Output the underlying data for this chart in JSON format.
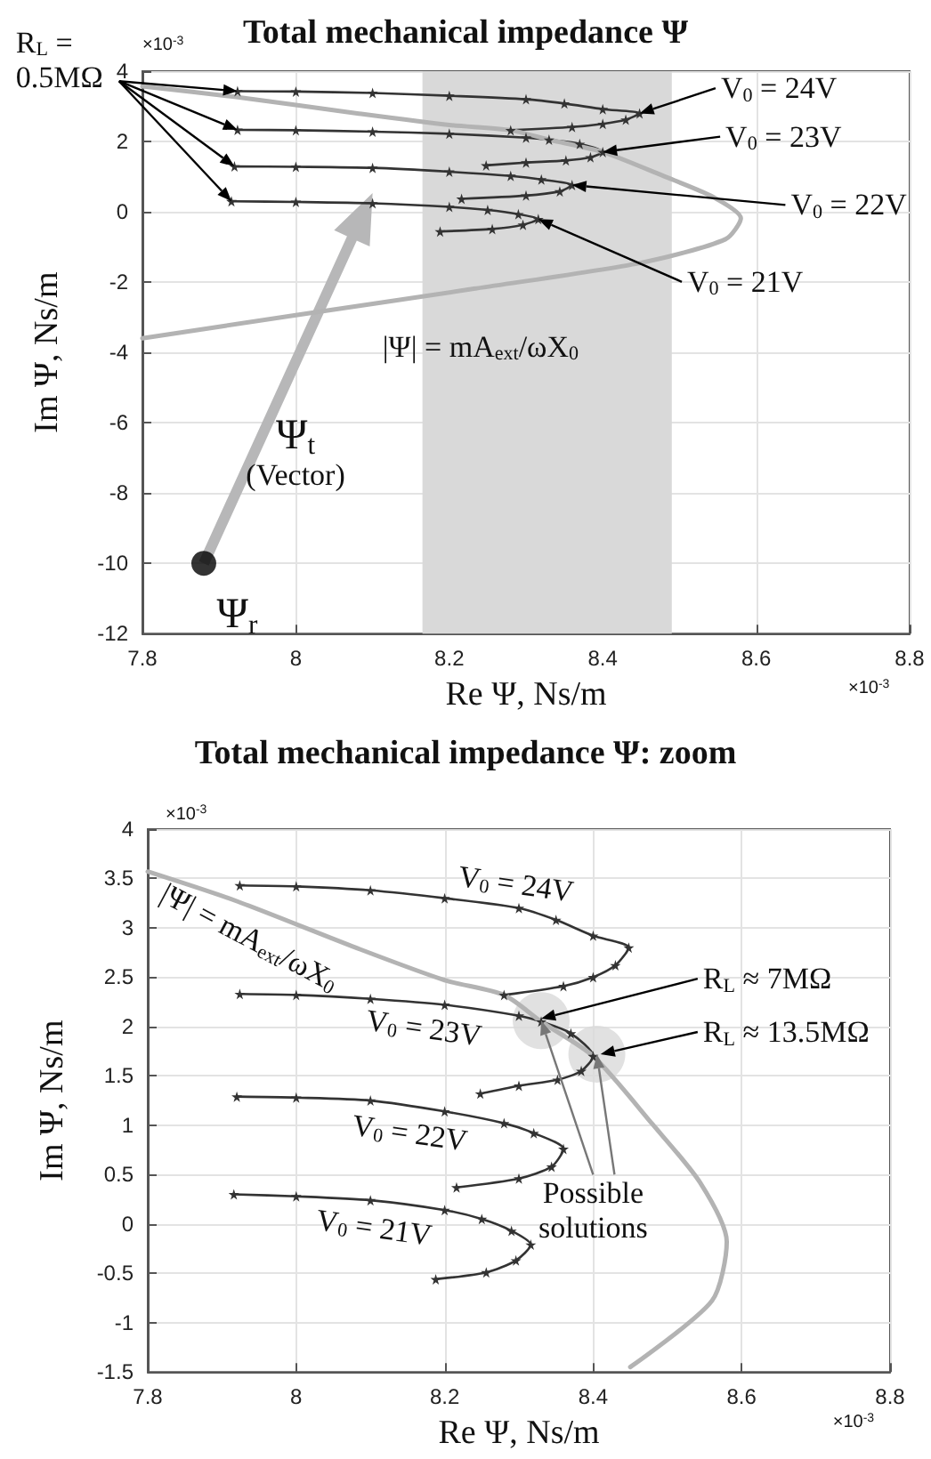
{
  "chart_data": [
    {
      "type": "line",
      "title": "Total mechanical impedance Ψ",
      "xlabel": "Re Ψ, Ns/m",
      "ylabel": "Im Ψ, Ns/m",
      "xlim": [
        7.8,
        8.8
      ],
      "xticks": [
        7.8,
        8,
        8.2,
        8.4,
        8.6,
        8.8
      ],
      "ylim": [
        -12,
        4
      ],
      "yticks": [
        -12,
        -10,
        -8,
        -6,
        -4,
        -2,
        0,
        2,
        4
      ],
      "grid": true,
      "marker": "star",
      "line_style": "solid",
      "bands": [
        {
          "axis": "x",
          "from": 8.165,
          "to": 8.49,
          "color": "#d9d9d9"
        }
      ],
      "series": [
        {
          "color": "#333333",
          "x": [
            7.924,
            8.0,
            8.1,
            8.2,
            8.3,
            8.35,
            8.4,
            8.448,
            8.43,
            8.4,
            8.36,
            8.28
          ],
          "values": [
            3.43,
            3.42,
            3.38,
            3.3,
            3.2,
            3.08,
            2.92,
            2.8,
            2.62,
            2.5,
            2.41,
            2.32
          ]
        },
        {
          "color": "#333333",
          "x": [
            7.924,
            8.0,
            8.1,
            8.2,
            8.3,
            8.33,
            8.37,
            8.4,
            8.384,
            8.352,
            8.3,
            8.248
          ],
          "values": [
            2.33,
            2.32,
            2.28,
            2.22,
            2.11,
            2.05,
            1.93,
            1.7,
            1.55,
            1.46,
            1.4,
            1.32
          ]
        },
        {
          "color": "#333333",
          "x": [
            7.92,
            8.0,
            8.1,
            8.2,
            8.28,
            8.32,
            8.36,
            8.344,
            8.3,
            8.216
          ],
          "values": [
            1.29,
            1.28,
            1.25,
            1.14,
            1.02,
            0.92,
            0.76,
            0.58,
            0.46,
            0.37
          ]
        },
        {
          "color": "#333333",
          "x": [
            7.916,
            8.0,
            8.1,
            8.2,
            8.25,
            8.29,
            8.316,
            8.296,
            8.256,
            8.188
          ],
          "values": [
            0.3,
            0.28,
            0.24,
            0.14,
            0.05,
            -0.07,
            -0.21,
            -0.37,
            -0.49,
            -0.56
          ]
        },
        {
          "color": "#b3b3b3",
          "marker": "none",
          "x": [
            7.8,
            7.92,
            8.08,
            8.2,
            8.28,
            8.33,
            8.4,
            8.48,
            8.544,
            8.58,
            8.56,
            8.45,
            8.232,
            8.0,
            7.8
          ],
          "values": [
            3.57,
            3.27,
            2.8,
            2.47,
            2.32,
            2.05,
            1.7,
            1.01,
            0.42,
            -0.18,
            -0.78,
            -1.45,
            -2.19,
            -2.94,
            -3.6
          ]
        },
        {
          "type": "scatter",
          "color": "#000000",
          "marker": "circle",
          "x": [
            7.88
          ],
          "values": [
            -10
          ]
        }
      ],
      "annotations": [
        {
          "text": "R$_{L}$ =\n0.5MΩ",
          "x": 7.924,
          "y": 3.43
        },
        {
          "text": "V$_{0}$ = 24V",
          "x": 8.448,
          "y": 2.8
        },
        {
          "text": "V$_{0}$ = 23V",
          "x": 8.4,
          "y": 1.7
        },
        {
          "text": "V$_{0}$ = 22V",
          "x": 8.36,
          "y": 0.76
        },
        {
          "text": "V$_{0}$ = 21V",
          "x": 8.316,
          "y": -0.21
        },
        "|Ψ| = mA$_{ext}$/ωX$_{0}$",
        "Ψ$_{t}$",
        "(Vector)",
        "Ψ$_{r}$",
        "×10$^{-3}$",
        "×10$^{-3}$"
      ]
    },
    {
      "type": "line",
      "title": "Total mechanical impedance Ψ: zoom",
      "xlabel": "Re Ψ, Ns/m",
      "ylabel": "Im Ψ, Ns/m",
      "xlim": [
        7.8,
        8.8
      ],
      "xticks": [
        7.8,
        8,
        8.2,
        8.4,
        8.6,
        8.8
      ],
      "ylim": [
        -1.5,
        4
      ],
      "yticks": [
        -1.5,
        -1,
        -0.5,
        0,
        0.5,
        1,
        1.5,
        2,
        2.5,
        3,
        3.5,
        4
      ],
      "grid": true,
      "marker": "star",
      "line_style": "solid",
      "series": [
        {
          "color": "#333333",
          "x": [
            7.924,
            8.0,
            8.1,
            8.2,
            8.3,
            8.35,
            8.4,
            8.448,
            8.43,
            8.4,
            8.36,
            8.28
          ],
          "values": [
            3.43,
            3.42,
            3.38,
            3.3,
            3.2,
            3.08,
            2.92,
            2.8,
            2.62,
            2.5,
            2.41,
            2.32
          ]
        },
        {
          "color": "#333333",
          "x": [
            7.924,
            8.0,
            8.1,
            8.2,
            8.3,
            8.33,
            8.37,
            8.4,
            8.384,
            8.352,
            8.3,
            8.248
          ],
          "values": [
            2.33,
            2.32,
            2.28,
            2.22,
            2.11,
            2.05,
            1.93,
            1.7,
            1.55,
            1.46,
            1.4,
            1.32
          ]
        },
        {
          "color": "#333333",
          "x": [
            7.92,
            8.0,
            8.1,
            8.2,
            8.28,
            8.32,
            8.36,
            8.344,
            8.3,
            8.216
          ],
          "values": [
            1.29,
            1.28,
            1.25,
            1.14,
            1.02,
            0.92,
            0.76,
            0.58,
            0.46,
            0.37
          ]
        },
        {
          "color": "#333333",
          "x": [
            7.916,
            8.0,
            8.1,
            8.2,
            8.25,
            8.29,
            8.316,
            8.296,
            8.256,
            8.188
          ],
          "values": [
            0.3,
            0.28,
            0.24,
            0.14,
            0.05,
            -0.07,
            -0.21,
            -0.37,
            -0.49,
            -0.56
          ]
        },
        {
          "color": "#b3b3b3",
          "marker": "none",
          "x": [
            7.8,
            7.92,
            8.08,
            8.2,
            8.28,
            8.33,
            8.4,
            8.48,
            8.544,
            8.58,
            8.56,
            8.45
          ],
          "values": [
            3.57,
            3.27,
            2.8,
            2.47,
            2.32,
            2.05,
            1.7,
            1.01,
            0.42,
            -0.18,
            -0.78,
            -1.45
          ]
        },
        {
          "type": "scatter",
          "color": "#d9d9d9",
          "marker": "circle",
          "x": [
            8.33,
            8.405
          ],
          "values": [
            2.06,
            1.72
          ]
        }
      ],
      "annotations": [
        "|Ψ| = mA$_{ext}$/ωX$_{0}$",
        "V$_{0}$ = 24V",
        "V$_{0}$ = 23V",
        "V$_{0}$ = 22V",
        "V$_{0}$ = 21V",
        {
          "text": "R$_{L}$ ≈ 7MΩ",
          "x": 8.33,
          "y": 2.08
        },
        {
          "text": "R$_{L}$ ≈ 13.5MΩ",
          "x": 8.41,
          "y": 1.72
        },
        {
          "text": "Possible\nsolutions",
          "x": 8.33,
          "y": 2.06
        },
        "×10$^{-3}$",
        "×10$^{-3}$"
      ]
    }
  ]
}
